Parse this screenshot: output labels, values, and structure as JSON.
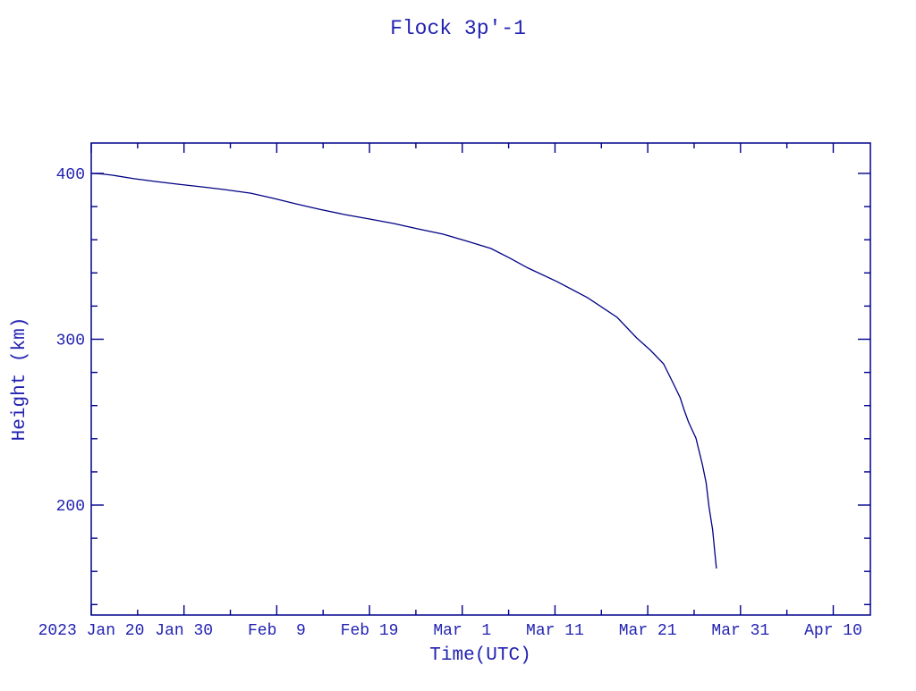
{
  "page": {
    "background": "#ffffff"
  },
  "colors": {
    "text": "#2222b2",
    "axis": "#00008b",
    "line": "#000084"
  },
  "chart_data": {
    "type": "line",
    "title": "Flock 3p'-1",
    "xlabel": "Time(UTC)",
    "ylabel": "Height (km)",
    "grid": false,
    "legend": false,
    "x_axis": {
      "unit": "days since 2023 Jan 20 (UTC)",
      "range_days": [
        0,
        84
      ],
      "major_ticks": [
        {
          "day": 0,
          "label": "2023 Jan 20"
        },
        {
          "day": 10,
          "label": "Jan 30"
        },
        {
          "day": 20,
          "label": "Feb  9"
        },
        {
          "day": 30,
          "label": "Feb 19"
        },
        {
          "day": 40,
          "label": "Mar  1"
        },
        {
          "day": 50,
          "label": "Mar 11"
        },
        {
          "day": 60,
          "label": "Mar 21"
        },
        {
          "day": 70,
          "label": "Mar 31"
        },
        {
          "day": 80,
          "label": "Apr 10"
        }
      ],
      "minor_tick_days": [
        5,
        15,
        25,
        35,
        45,
        55,
        65,
        75
      ]
    },
    "y_axis": {
      "unit": "km",
      "range": [
        134,
        418
      ],
      "major_ticks": [
        {
          "value": 400,
          "label": "400"
        },
        {
          "value": 300,
          "label": "300"
        },
        {
          "value": 200,
          "label": "200"
        }
      ],
      "minor_tick_values": [
        380,
        360,
        340,
        320,
        280,
        260,
        240,
        220,
        180,
        160,
        140
      ]
    },
    "series": [
      {
        "name": "Flock 3p'-1 orbital height",
        "points_day_km": [
          [
            0.0,
            400.0
          ],
          [
            1.2,
            399.7
          ],
          [
            2.3,
            398.9
          ],
          [
            4.6,
            396.8
          ],
          [
            7.0,
            395.1
          ],
          [
            9.4,
            393.5
          ],
          [
            11.9,
            391.9
          ],
          [
            14.3,
            390.3
          ],
          [
            17.2,
            388.1
          ],
          [
            19.6,
            385.0
          ],
          [
            22.0,
            381.7
          ],
          [
            24.6,
            378.4
          ],
          [
            27.3,
            375.2
          ],
          [
            30.0,
            372.5
          ],
          [
            32.6,
            369.8
          ],
          [
            35.2,
            366.6
          ],
          [
            37.9,
            363.4
          ],
          [
            40.3,
            359.5
          ],
          [
            43.1,
            354.7
          ],
          [
            45.1,
            349.0
          ],
          [
            47.1,
            342.9
          ],
          [
            50.2,
            334.8
          ],
          [
            53.5,
            325.1
          ],
          [
            56.7,
            313.2
          ],
          [
            58.8,
            300.8
          ],
          [
            60.3,
            293.3
          ],
          [
            61.7,
            285.2
          ],
          [
            62.8,
            272.8
          ],
          [
            63.5,
            264.7
          ],
          [
            63.9,
            257.7
          ],
          [
            64.4,
            250.1
          ],
          [
            65.2,
            240.4
          ],
          [
            65.9,
            224.2
          ],
          [
            66.3,
            213.4
          ],
          [
            66.6,
            198.9
          ],
          [
            67.0,
            184.9
          ],
          [
            67.2,
            173.0
          ],
          [
            67.4,
            161.8
          ]
        ]
      }
    ]
  }
}
